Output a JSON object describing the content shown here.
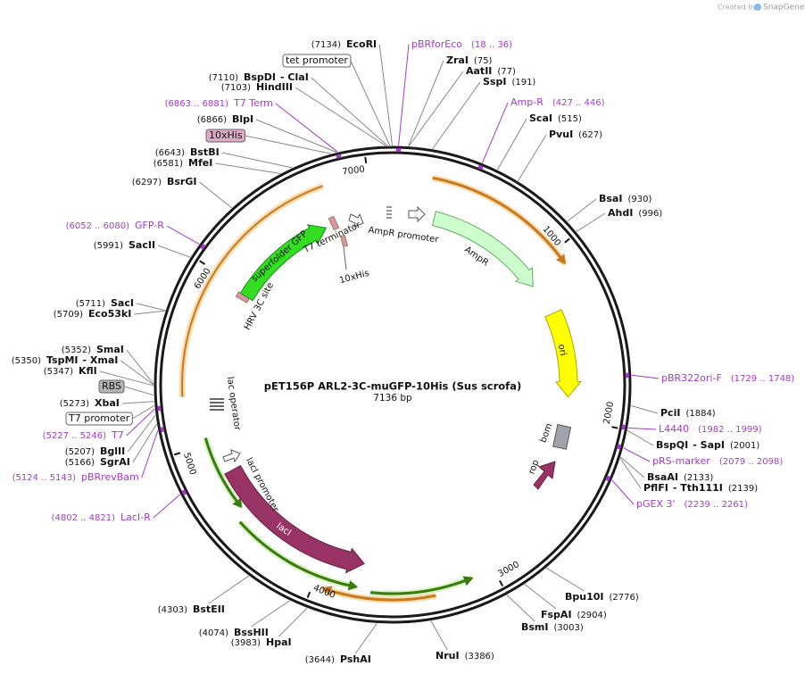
{
  "header": {
    "credit": "Created by",
    "brand": "SnapGene"
  },
  "map": {
    "title": "pET156P ARL2-3C-muGFP-10His (Sus scrofa)",
    "length": "7136 bp",
    "ticks": [
      1000,
      2000,
      3000,
      4000,
      5000,
      6000,
      7000
    ],
    "sites": [
      {
        "name": "EcoRI",
        "position": "(7134)"
      },
      {
        "name": "BspDI",
        "also": "- ClaI",
        "position": "(7110)"
      },
      {
        "name": "HindIII",
        "position": "(7103)"
      },
      {
        "name": "BlpI",
        "position": "(6866)"
      },
      {
        "name": "BstBI",
        "position": "(6643)"
      },
      {
        "name": "MfeI",
        "position": "(6581)"
      },
      {
        "name": "BsrGI",
        "position": "(6297)"
      },
      {
        "name": "SacII",
        "position": "(5991)"
      },
      {
        "name": "SacI",
        "position": "(5711)"
      },
      {
        "name": "Eco53kI",
        "position": "(5709)"
      },
      {
        "name": "SmaI",
        "position": "(5352)"
      },
      {
        "name": "TspMI",
        "also": "- XmaI",
        "position": "(5350)"
      },
      {
        "name": "KflI",
        "position": "(5347)"
      },
      {
        "name": "XbaI",
        "position": "(5273)"
      },
      {
        "name": "BglII",
        "position": "(5207)"
      },
      {
        "name": "SgrAI",
        "position": "(5166)"
      },
      {
        "name": "BstEII",
        "position": "(4303)"
      },
      {
        "name": "BssHII",
        "position": "(4074)"
      },
      {
        "name": "HpaI",
        "position": "(3983)"
      },
      {
        "name": "PshAI",
        "position": "(3644)"
      },
      {
        "name": "NruI",
        "position": "(3386)"
      },
      {
        "name": "BsmI",
        "position": "(3003)"
      },
      {
        "name": "FspAI",
        "position": "(2904)"
      },
      {
        "name": "Bpu10I",
        "position": "(2776)"
      },
      {
        "name": "PflFI",
        "also": "- Tth111I",
        "position": "(2139)"
      },
      {
        "name": "BsaAI",
        "position": "(2133)"
      },
      {
        "name": "BspQI",
        "also": "- SapI",
        "position": "(2001)"
      },
      {
        "name": "PciI",
        "position": "(1884)"
      },
      {
        "name": "AhdI",
        "position": "(996)"
      },
      {
        "name": "BsaI",
        "position": "(930)"
      },
      {
        "name": "PvuI",
        "position": "(627)"
      },
      {
        "name": "ScaI",
        "position": "(515)"
      },
      {
        "name": "SspI",
        "position": "(191)"
      },
      {
        "name": "AatII",
        "position": "(77)"
      },
      {
        "name": "ZraI",
        "position": "(75)"
      }
    ],
    "primers": [
      {
        "name": "pBRforEco",
        "range": "(18 .. 36)"
      },
      {
        "name": "Amp-R",
        "range": "(427 .. 446)"
      },
      {
        "name": "pBR322ori-F",
        "range": "(1729 .. 1748)"
      },
      {
        "name": "L4440",
        "range": "(1982 .. 1999)"
      },
      {
        "name": "pRS-marker",
        "range": "(2079 .. 2098)"
      },
      {
        "name": "pGEX 3'",
        "range": "(2239 .. 2261)"
      },
      {
        "name": "LacI-R",
        "range": "(4802 .. 4821)"
      },
      {
        "name": "pBRrevBam",
        "range": "(5124 .. 5143)"
      },
      {
        "name": "T7",
        "range": "(5227 .. 5246)"
      },
      {
        "name": "GFP-R",
        "range": "(6052 .. 6080)"
      },
      {
        "name": "T7 Term",
        "range": "(6863 .. 6881)"
      }
    ],
    "boxed_features": [
      "tet promoter",
      "10xHis",
      "RBS",
      "T7 promoter"
    ],
    "features": [
      "superfolder GFP",
      "T7 terminator",
      "10xHis",
      "AmpR promoter",
      "AmpR",
      "ori",
      "bom",
      "rop",
      "lacI",
      "lacI promoter",
      "lac operator",
      "HRV 3C site"
    ]
  }
}
